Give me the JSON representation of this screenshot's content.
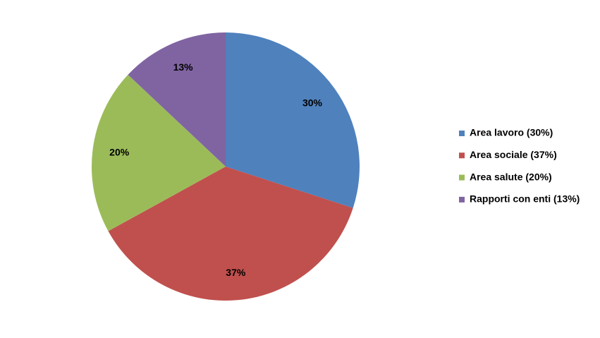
{
  "chart_data": {
    "type": "pie",
    "categories": [
      "Area lavoro (30%)",
      "Area sociale (37%)",
      "Area salute (20%)",
      "Rapporti con enti (13%)"
    ],
    "values": [
      30,
      37,
      20,
      13
    ],
    "value_labels": [
      "30%",
      "37%",
      "20%",
      "13%"
    ],
    "colors": [
      "#4f81bd",
      "#c0504d",
      "#9bbb59",
      "#8064a2"
    ],
    "legend": "right"
  }
}
